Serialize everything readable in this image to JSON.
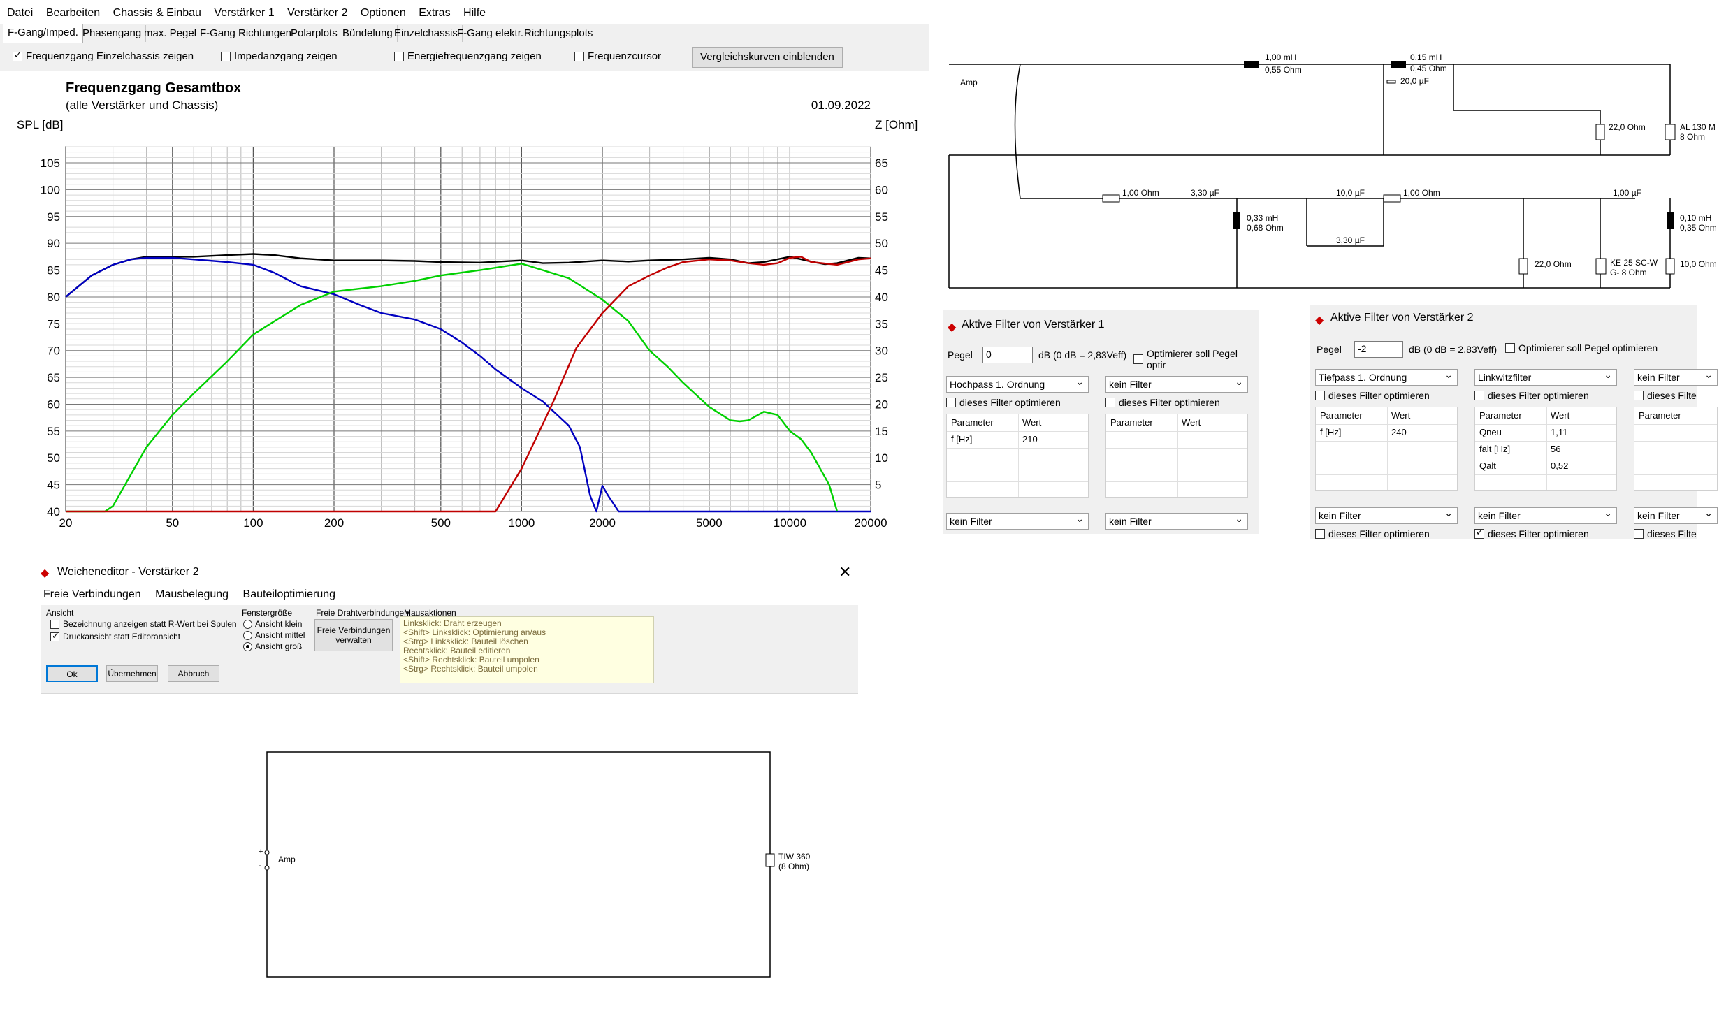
{
  "menu": [
    "Datei",
    "Bearbeiten",
    "Chassis & Einbau",
    "Verstärker 1",
    "Verstärker 2",
    "Optionen",
    "Extras",
    "Hilfe"
  ],
  "tabs": [
    "F-Gang/Imped.",
    "Phasengang",
    "max. Pegel",
    "F-Gang Richtungen",
    "Polarplots",
    "Bündelung",
    "Einzelchassis",
    "F-Gang elektr.",
    "Richtungsplots"
  ],
  "checks": {
    "einzelchassis": {
      "label": "Frequenzgang Einzelchassis zeigen",
      "checked": true
    },
    "impedanz": {
      "label": "Impedanzgang zeigen",
      "checked": false
    },
    "energie": {
      "label": "Energiefrequenzgang zeigen",
      "checked": false
    },
    "cursor": {
      "label": "Frequenzcursor",
      "checked": false
    },
    "compare_button": "Vergleichskurven einblenden"
  },
  "chart_data": {
    "type": "line",
    "title": "Frequenzgang Gesamtbox",
    "subtitle": "(alle Verstärker und Chassis)",
    "date": "01.09.2022",
    "ylabel": "SPL [dB]",
    "y2label": "Z [Ohm]",
    "xscale": "log",
    "xlim": [
      20,
      20000
    ],
    "ylim": [
      40,
      108
    ],
    "y2lim": [
      0,
      68
    ],
    "xticks": [
      "20",
      "50",
      "100",
      "200",
      "500",
      "1000",
      "2000",
      "5000",
      "10000",
      "20000"
    ],
    "xtick_values": [
      20,
      50,
      100,
      200,
      500,
      1000,
      2000,
      5000,
      10000,
      20000
    ],
    "yticks": [
      "105",
      "100",
      "95",
      "90",
      "85",
      "80",
      "75",
      "70",
      "65",
      "60",
      "55",
      "50",
      "45",
      "40"
    ],
    "y2ticks": [
      "65",
      "60",
      "55",
      "50",
      "45",
      "40",
      "35",
      "30",
      "25",
      "20",
      "15",
      "10",
      "5"
    ],
    "grid": true,
    "series": [
      {
        "color": "#000000",
        "x": [
          20,
          25,
          30,
          35,
          40,
          50,
          60,
          80,
          100,
          120,
          150,
          200,
          300,
          400,
          500,
          700,
          1000,
          1200,
          1500,
          2000,
          2500,
          3000,
          4000,
          5000,
          6000,
          7000,
          8000,
          10000,
          12000,
          13500,
          15000,
          18000,
          20000
        ],
        "y": [
          80,
          84,
          86,
          87,
          87.5,
          87.5,
          87.5,
          87.8,
          88,
          87.8,
          87.2,
          86.8,
          86.8,
          86.7,
          86.5,
          86.4,
          86.8,
          86.3,
          86.4,
          86.8,
          86.6,
          86.8,
          87,
          87.3,
          87,
          86.3,
          86.5,
          87.5,
          86.6,
          86.1,
          86.3,
          87.3,
          87.2
        ]
      },
      {
        "color": "#0000c0",
        "x": [
          20,
          25,
          30,
          35,
          40,
          50,
          60,
          80,
          100,
          120,
          150,
          200,
          250,
          300,
          400,
          500,
          600,
          700,
          800,
          1000,
          1200,
          1500,
          1650,
          1800,
          1900,
          2000,
          2100,
          2300,
          2500,
          3000,
          20000
        ],
        "y": [
          80,
          84,
          86,
          87,
          87.3,
          87.3,
          87,
          86.5,
          86,
          84.5,
          82,
          80.5,
          78.5,
          77,
          75.8,
          74,
          71.5,
          69,
          66.5,
          63,
          60.5,
          56,
          52,
          43,
          40,
          44.8,
          43,
          40,
          40,
          40,
          40
        ]
      },
      {
        "color": "#00d000",
        "x": [
          20,
          28,
          30,
          40,
          50,
          60,
          80,
          100,
          150,
          200,
          300,
          400,
          500,
          700,
          1000,
          1200,
          1500,
          2000,
          2500,
          3000,
          3500,
          4000,
          5000,
          6000,
          6500,
          7000,
          8000,
          9000,
          10000,
          11000,
          12000,
          14000,
          15000
        ],
        "y": [
          40,
          40,
          41,
          52,
          58,
          62,
          68,
          73,
          78.5,
          81,
          82,
          83,
          84,
          85,
          86.2,
          85,
          83.5,
          79.5,
          75.5,
          70,
          67,
          64,
          59.5,
          57,
          56.8,
          57,
          58.6,
          58,
          55,
          53.5,
          51,
          45,
          40
        ]
      },
      {
        "color": "#c00000",
        "x": [
          20,
          600,
          800,
          1000,
          1300,
          1600,
          2000,
          2500,
          3000,
          3500,
          4000,
          5000,
          6000,
          7000,
          8000,
          9000,
          10000,
          11000,
          12000,
          15000,
          18000,
          20000
        ],
        "y": [
          40,
          40,
          40,
          48,
          60,
          70.5,
          77,
          82,
          84,
          85.5,
          86.5,
          87,
          86.8,
          86.3,
          86,
          86.3,
          87.3,
          87.5,
          86.5,
          86,
          87,
          87.2
        ]
      }
    ]
  },
  "filter1": {
    "title": "Aktive Filter von Verstärker 1",
    "pegel_label": "Pegel",
    "pegel_value": "0",
    "pegel_unit": "dB (0 dB = 2,83Veff)",
    "optimize_label": "Optimierer soll Pegel optir",
    "col1": {
      "type": "Hochpass 1. Ordnung",
      "opt": "dieses Filter optimieren",
      "h1": "Parameter",
      "h2": "Wert",
      "p1": "f [Hz]",
      "v1": "210",
      "bottom": "kein Filter"
    },
    "col2": {
      "type": "kein Filter",
      "opt": "dieses Filter optimieren",
      "h1": "Parameter",
      "h2": "Wert",
      "bottom": "kein Filter"
    }
  },
  "filter2": {
    "title": "Aktive Filter von Verstärker 2",
    "pegel_label": "Pegel",
    "pegel_value": "-2",
    "pegel_unit": "dB (0 dB = 2,83Veff)",
    "optimize_label": "Optimierer soll Pegel optimieren",
    "col1": {
      "type": "Tiefpass 1. Ordnung",
      "opt": "dieses Filter optimieren",
      "h1": "Parameter",
      "h2": "Wert",
      "p1": "f [Hz]",
      "v1": "240",
      "bottom": "kein Filter",
      "bottom_opt": "dieses Filter optimieren"
    },
    "col2": {
      "type": "Linkwitzfilter",
      "opt": "dieses Filter optimieren",
      "h1": "Parameter",
      "h2": "Wert",
      "p1": "Qneu",
      "v1": "1,11",
      "p2": "falt [Hz]",
      "v2": "56",
      "p3": "Qalt",
      "v3": "0,52",
      "bottom": "kein Filter",
      "bottom_opt": "dieses Filter optimieren",
      "bottom_opt_checked": true
    },
    "col3": {
      "type": "kein Filter",
      "opt": "dieses Filte",
      "h1": "Parameter",
      "bottom": "kein Filter",
      "bottom_opt": "dieses Filte"
    }
  },
  "schematic1": {
    "amp": "Amp",
    "l1": "1,00 mH",
    "l1r": "0,55 Ohm",
    "l2": "0,15 mH",
    "l2r": "0,45 Ohm",
    "c1": "20,0 µF",
    "r1": "22,0 Ohm",
    "drv1": "AL 130 M",
    "drv1b": "8 Ohm",
    "r2": "1,00 Ohm",
    "c2": "3,30 µF",
    "c3": "10,0 µF",
    "r3": "1,00 Ohm",
    "c4": "1,00 µF",
    "l3": "0,33 mH",
    "l3r": "0,68 Ohm",
    "c5": "3,30 µF",
    "r4": "22,0 Ohm",
    "drv2": "KE 25 SC-W",
    "drv2b": "G- 8 Ohm",
    "l4": "0,10 mH",
    "l4r": "0,35 Ohm",
    "r5": "10,0 Ohm"
  },
  "editor": {
    "title": "Weicheneditor - Verstärker 2",
    "menu": [
      "Freie Verbindungen",
      "Mausbelegung",
      "Bauteiloptimierung"
    ],
    "ansicht": "Ansicht",
    "opt1": "Bezeichnung anzeigen statt R-Wert bei Spulen",
    "opt2": "Druckansicht statt Editoransicht",
    "fenster": "Fenstergröße",
    "r1": "Ansicht klein",
    "r2": "Ansicht mittel",
    "r3": "Ansicht groß",
    "freie": "Freie Drahtverbindungen",
    "freie_btn1": "Freie Verbindungen",
    "freie_btn2": "verwalten",
    "maus": "Mausaktionen",
    "help": [
      "Linksklick: Draht erzeugen",
      "<Shift> Linksklick: Optimierung an/aus",
      "<Strg> Linksklick: Bauteil löschen",
      "Rechtsklick: Bauteil editieren",
      "<Shift> Rechtsklick: Bauteil umpolen",
      "<Strg> Rechtsklick: Bauteil umpolen"
    ],
    "ok": "Ok",
    "apply": "Übernehmen",
    "cancel": "Abbruch",
    "amp": "Amp",
    "driver": "TIW 360",
    "driver_imp": "(8 Ohm)"
  }
}
